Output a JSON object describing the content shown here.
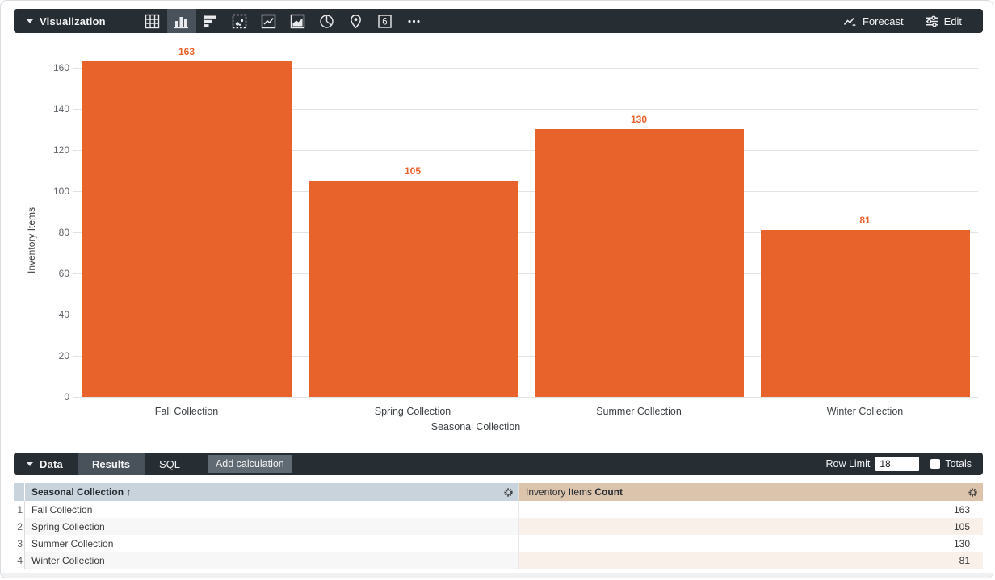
{
  "viz_toolbar": {
    "section_label": "Visualization",
    "viz_types": [
      "table",
      "column",
      "bar",
      "scatter",
      "line",
      "area",
      "pie",
      "map",
      "single-value",
      "more"
    ],
    "selected_viz": "column",
    "single_value_glyph": "6",
    "forecast_label": "Forecast",
    "edit_label": "Edit"
  },
  "chart_data": {
    "type": "bar",
    "categories": [
      "Fall Collection",
      "Spring Collection",
      "Summer Collection",
      "Winter Collection"
    ],
    "values": [
      163,
      105,
      130,
      81
    ],
    "title": "",
    "xlabel": "Seasonal Collection",
    "ylabel": "Inventory Items",
    "ylim": [
      0,
      160
    ],
    "ytick_step": 20,
    "grid": true,
    "legend": "none",
    "bar_color": "#E8632C",
    "value_label_color": "#E8632C"
  },
  "data_panel": {
    "section_label": "Data",
    "tabs": [
      {
        "label": "Results",
        "active": true
      },
      {
        "label": "SQL",
        "active": false
      }
    ],
    "add_calculation_label": "Add calculation",
    "row_limit_label": "Row Limit",
    "row_limit_value": "18",
    "totals_label": "Totals",
    "totals_checked": false
  },
  "table": {
    "columns": [
      {
        "label": "Seasonal Collection",
        "sort_arrow": "↑",
        "type": "dimension"
      },
      {
        "label_view": "Inventory Items",
        "label_field": "Count",
        "type": "measure"
      }
    ],
    "rows": [
      {
        "index": "1",
        "dimension": "Fall Collection",
        "measure": "163"
      },
      {
        "index": "2",
        "dimension": "Spring Collection",
        "measure": "105"
      },
      {
        "index": "3",
        "dimension": "Summer Collection",
        "measure": "130"
      },
      {
        "index": "4",
        "dimension": "Winter Collection",
        "measure": "81"
      }
    ]
  },
  "colors": {
    "toolbar_bg": "#262D33",
    "selected_bg": "#49525A",
    "bar_orange": "#E8632C",
    "dimension_header_bg": "#C8D3DC",
    "measure_header_bg": "#DCC3AC"
  }
}
